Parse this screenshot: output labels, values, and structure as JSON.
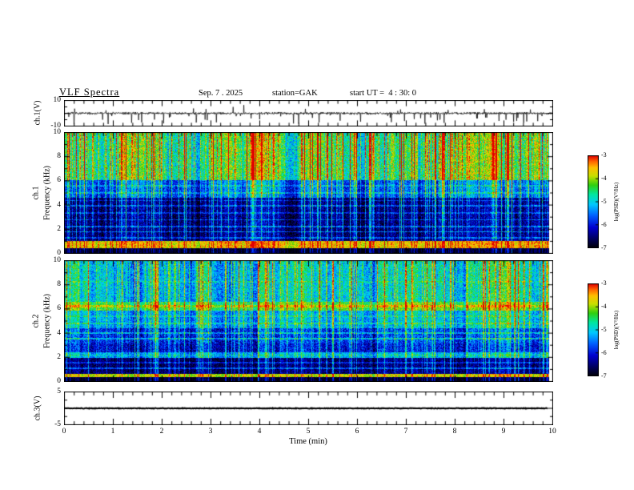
{
  "header": {
    "title": "VLF Spectra",
    "date": "Sep. 7 . 2025",
    "station": "station=GAK",
    "start_ut": "start UT =  4 : 30: 0"
  },
  "axes": {
    "time_label": "Time (min)",
    "time_ticks": [
      "0",
      "1",
      "2",
      "3",
      "4",
      "5",
      "6",
      "7",
      "8",
      "9",
      "10"
    ],
    "freq_label": "Frequency (kHz)",
    "freq_values": [
      0,
      2,
      4,
      6,
      8,
      10
    ],
    "freq_ticks": [
      "0",
      "2",
      "4",
      "6",
      "8",
      "10"
    ],
    "colorbar_label": "log(PSD)(V²/Hz)",
    "colorbar_ticks": [
      "-3",
      "-4",
      "-5",
      "-6",
      "-7"
    ]
  },
  "panels": {
    "ch1_wave": {
      "label": "ch.1(V)",
      "ymax": "10",
      "ymin": "-10"
    },
    "ch1_spec": {
      "channel": "ch.1",
      "axis": "Frequency (kHz)"
    },
    "ch2_spec": {
      "channel": "ch.2",
      "axis": "Frequency (kHz)"
    },
    "ch3_wave": {
      "label": "ch.3(V)",
      "ymax": "5",
      "ymin": "-5"
    }
  },
  "colormap": [
    [
      0.0,
      "#000008"
    ],
    [
      0.1,
      "#000060"
    ],
    [
      0.22,
      "#0000d0"
    ],
    [
      0.35,
      "#0060ff"
    ],
    [
      0.47,
      "#00c8ff"
    ],
    [
      0.58,
      "#00e8a0"
    ],
    [
      0.68,
      "#30d010"
    ],
    [
      0.78,
      "#c8e000"
    ],
    [
      0.87,
      "#ffc000"
    ],
    [
      0.94,
      "#ff6000"
    ],
    [
      1.0,
      "#e00000"
    ]
  ],
  "chart_data": [
    {
      "type": "line",
      "name": "ch1_voltage_waveform",
      "ylabel": "ch.1(V)",
      "xlabel": "Time (min)",
      "xlim": [
        0,
        10
      ],
      "ylim": [
        -10,
        10
      ],
      "description": "Broadband noise centered on 0 V (about ±1.5 V) with frequent impulsive spikes, mostly downward reaching -4 to -10 V, occasional upward spikes to +3 to +9 V, spanning 0 to ~10 min",
      "gen": {
        "seed": 7,
        "n": 1600,
        "base": 0,
        "noise_amp": 1.1,
        "spike_down_prob": 0.03,
        "spike_down": [
          2,
          8.5
        ],
        "spike_up_prob": 0.012,
        "spike_up": [
          2,
          7
        ],
        "lw": 0.7,
        "end_frac": 1.0
      }
    },
    {
      "type": "heatmap",
      "name": "ch1_spectrogram",
      "ylabel": "ch.1 Frequency (kHz)",
      "xlabel": "Time (min)",
      "xlim": [
        0,
        10
      ],
      "ylim": [
        0,
        10
      ],
      "zlim": [
        -7,
        -3
      ],
      "zlabel": "log(PSD)(V²/Hz)",
      "description": "VLF spectrogram: intense green/yellow sferic activity 6-10 kHz with dense red vertical impulse streaks; transition band 4.6-6 kHz; dark navy background 1-4.6 kHz crossed by thin blue horizontal lines and vertical streaks; bright red/orange band near 0.4-0.9 kHz; black below 0.35 kHz",
      "bands": [
        {
          "f0": 0.0,
          "f1": 0.35,
          "level": -6.9,
          "noise": 0.25,
          "mod": 0.3
        },
        {
          "f0": 0.35,
          "f1": 0.95,
          "level": -3.7,
          "noise": 0.45,
          "mod": 0.4
        },
        {
          "f0": 0.95,
          "f1": 4.6,
          "level": -6.55,
          "noise": 0.45,
          "mod": 0.5
        },
        {
          "f0": 4.6,
          "f1": 6.1,
          "level": -5.7,
          "noise": 0.5,
          "mod": 0.8
        },
        {
          "f0": 6.1,
          "f1": 10.0,
          "level": -4.55,
          "noise": 0.6,
          "mod": 1.0
        }
      ],
      "h_lines": [
        {
          "f": 1.25,
          "w": 0.06,
          "dl": 0.7
        },
        {
          "f": 1.75,
          "w": 0.06,
          "dl": 0.9
        },
        {
          "f": 2.2,
          "w": 0.07,
          "dl": 0.8
        },
        {
          "f": 2.75,
          "w": 0.06,
          "dl": 0.7
        },
        {
          "f": 3.3,
          "w": 0.06,
          "dl": 0.6
        },
        {
          "f": 3.9,
          "w": 0.06,
          "dl": 0.7
        },
        {
          "f": 4.35,
          "w": 0.05,
          "dl": 0.6
        },
        {
          "f": 5.0,
          "w": 0.08,
          "dl": 0.5
        },
        {
          "f": 5.6,
          "w": 0.07,
          "dl": 0.4
        }
      ],
      "streaks": {
        "density": 0.45,
        "min": 0.2,
        "max": 2.6,
        "w0": 0.45,
        "w1": 1.0
      },
      "gen": {
        "seed": 21
      }
    },
    {
      "type": "heatmap",
      "name": "ch2_spectrogram",
      "ylabel": "ch.2 Frequency (kHz)",
      "xlabel": "Time (min)",
      "xlim": [
        0,
        10
      ],
      "ylim": [
        0,
        10
      ],
      "zlim": [
        -7,
        -3
      ],
      "zlabel": "log(PSD)(V²/Hz)",
      "description": "VLF spectrogram: mottled cyan/green 6.6-10 kHz with vertical streaks; bright yellow/orange band 5.9-6.6 kHz; mixed cyan-green 4.4-5.9 kHz; darker blue 2.4-4.4 kHz with thin bright lines; cyan band 1.9-2.4 kHz; dark navy 0.6-1.9 kHz; thin red line near 0.45 kHz; black below 0.3 kHz",
      "bands": [
        {
          "f0": 0.0,
          "f1": 0.3,
          "level": -6.9,
          "noise": 0.25,
          "mod": 0.3
        },
        {
          "f0": 0.3,
          "f1": 0.6,
          "level": -3.9,
          "noise": 0.4,
          "mod": 0.4
        },
        {
          "f0": 0.6,
          "f1": 1.9,
          "level": -6.6,
          "noise": 0.4,
          "mod": 0.4
        },
        {
          "f0": 1.9,
          "f1": 2.4,
          "level": -5.3,
          "noise": 0.45,
          "mod": 0.6
        },
        {
          "f0": 2.4,
          "f1": 3.1,
          "level": -6.1,
          "noise": 0.5,
          "mod": 0.6
        },
        {
          "f0": 3.1,
          "f1": 4.4,
          "level": -5.9,
          "noise": 0.55,
          "mod": 0.7
        },
        {
          "f0": 4.4,
          "f1": 5.9,
          "level": -5.25,
          "noise": 0.5,
          "mod": 0.8
        },
        {
          "f0": 5.9,
          "f1": 6.6,
          "level": -4.35,
          "noise": 0.45,
          "mod": 0.7
        },
        {
          "f0": 6.6,
          "f1": 10.0,
          "level": -5.05,
          "noise": 0.55,
          "mod": 0.9
        }
      ],
      "h_lines": [
        {
          "f": 1.05,
          "w": 0.06,
          "dl": 0.8
        },
        {
          "f": 1.5,
          "w": 0.06,
          "dl": 0.6
        },
        {
          "f": 2.15,
          "w": 0.06,
          "dl": 0.5
        },
        {
          "f": 3.5,
          "w": 0.06,
          "dl": 0.8
        },
        {
          "f": 4.0,
          "w": 0.06,
          "dl": 0.7
        },
        {
          "f": 4.8,
          "w": 0.07,
          "dl": 0.5
        },
        {
          "f": 5.4,
          "w": 0.06,
          "dl": 0.4
        },
        {
          "f": 6.25,
          "w": 0.1,
          "dl": 0.5
        },
        {
          "f": 8.3,
          "w": 0.06,
          "dl": 0.3
        }
      ],
      "streaks": {
        "density": 0.4,
        "min": 0.2,
        "max": 2.1,
        "w0": 0.55,
        "w1": 0.95
      },
      "gen": {
        "seed": 31
      }
    },
    {
      "type": "line",
      "name": "ch3_voltage_waveform",
      "ylabel": "ch.3(V)",
      "xlabel": "Time (min)",
      "xlim": [
        0,
        10
      ],
      "ylim": [
        -5,
        5
      ],
      "description": "Flat signal at 0 V for the whole record (thick black line ending just before 10 min)",
      "gen": {
        "seed": 9,
        "n": 900,
        "base": 0,
        "noise_amp": 0.13,
        "spike_down_prob": 0,
        "spike_down": [
          0,
          0
        ],
        "spike_up_prob": 0,
        "spike_up": [
          0,
          0
        ],
        "lw": 2,
        "end_frac": 0.99
      }
    }
  ]
}
